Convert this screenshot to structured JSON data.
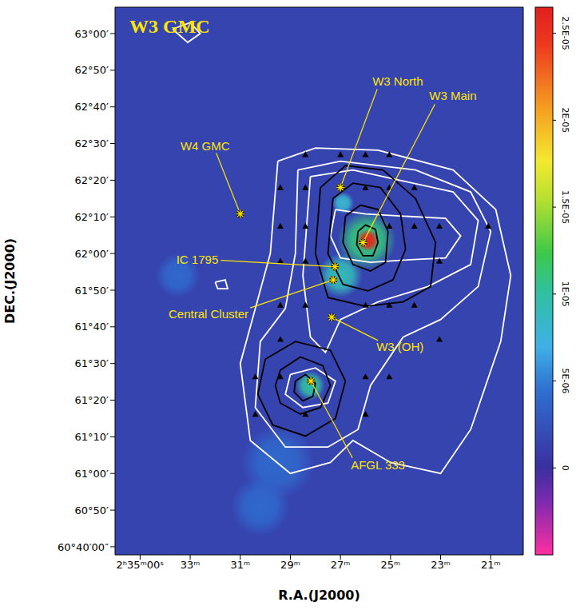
{
  "chart_data": {
    "type": "image",
    "title": "W3 GMC",
    "x_label": "R.A.(J2000)",
    "y_label": "DEC.(J2000)",
    "xlim": [
      36.0,
      19.7
    ],
    "ylim": [
      60.63,
      63.12
    ],
    "xticks": [
      {
        "value": 35,
        "label": "2ʰ35ᵐ00ˢ"
      },
      {
        "value": 33,
        "label": "33ᵐ"
      },
      {
        "value": 31,
        "label": "31ᵐ"
      },
      {
        "value": 29,
        "label": "29ᵐ"
      },
      {
        "value": 27,
        "label": "27ᵐ"
      },
      {
        "value": 25,
        "label": "25ᵐ"
      },
      {
        "value": 23,
        "label": "23ᵐ"
      },
      {
        "value": 21,
        "label": "21ᵐ"
      }
    ],
    "yticks": [
      {
        "value": 60.6667,
        "label": "60°40′00″"
      },
      {
        "value": 60.8333,
        "label": "60°50′"
      },
      {
        "value": 61,
        "label": "61°00′"
      },
      {
        "value": 61.1667,
        "label": "61°10′"
      },
      {
        "value": 61.3333,
        "label": "61°20′"
      },
      {
        "value": 61.5,
        "label": "61°30′"
      },
      {
        "value": 61.6667,
        "label": "61°40′"
      },
      {
        "value": 61.8333,
        "label": "61°50′"
      },
      {
        "value": 62,
        "label": "62°00′"
      },
      {
        "value": 62.1667,
        "label": "62°10′"
      },
      {
        "value": 62.3333,
        "label": "62°20′"
      },
      {
        "value": 62.5,
        "label": "62°30′"
      },
      {
        "value": 62.6667,
        "label": "62°40′"
      },
      {
        "value": 62.8333,
        "label": "62°50′"
      },
      {
        "value": 63,
        "label": "63°00′"
      }
    ],
    "grid": false,
    "background_intensity": 1.5e-06,
    "bright_regions": [
      {
        "x": 25.95,
        "y": 62.06,
        "intensity": 1.1e-05,
        "radius": 8
      },
      {
        "x": 27.0,
        "y": 61.9,
        "intensity": 9e-06,
        "radius": 6
      },
      {
        "x": 28.2,
        "y": 61.4,
        "intensity": 1e-05,
        "radius": 4
      },
      {
        "x": 26.9,
        "y": 62.23,
        "intensity": 8e-06,
        "radius": 3
      },
      {
        "x": 29.5,
        "y": 61.05,
        "intensity": 4e-06,
        "radius": 10
      },
      {
        "x": 30.2,
        "y": 60.85,
        "intensity": 4e-06,
        "radius": 8
      },
      {
        "x": 33.5,
        "y": 61.9,
        "intensity": 4e-06,
        "radius": 6
      },
      {
        "x": 25.9,
        "y": 62.06,
        "intensity": 2.6e-05,
        "radius": 3
      }
    ],
    "colorbar": {
      "range": [
        -5e-06,
        2.65e-05
      ],
      "ticks": [
        0,
        {
          "value": 5e-06,
          "label": "5E-06"
        },
        {
          "value": 1e-05,
          "label": "1E-05"
        },
        {
          "value": 1.5e-05,
          "label": "1.5E-05"
        },
        {
          "value": 2e-05,
          "label": "2E-05"
        },
        {
          "value": 2.5e-05,
          "label": "2.5E-05"
        }
      ]
    },
    "sources": {
      "names": [
        "W4 GMC",
        "W3 North",
        "W3 Main",
        "IC 1795",
        "Central Cluster",
        "W3 (OH)",
        "AFGL 333"
      ],
      "x": [
        31.0,
        27.0,
        26.1,
        27.22,
        27.29,
        27.35,
        28.18
      ],
      "y": [
        62.18,
        62.3,
        62.05,
        61.94,
        61.88,
        61.71,
        61.42
      ],
      "color": "#ffe600",
      "marker": "star"
    },
    "observed_positions": {
      "x": [
        28.4,
        27.0,
        26.0,
        25.05,
        29.4,
        28.4,
        26.0,
        25.05,
        24.05,
        29.4,
        28.4,
        25.05,
        24.05,
        23.05,
        21.1,
        29.4,
        28.4,
        23.05,
        29.4,
        28.4,
        26.0,
        25.05,
        24.05,
        29.4,
        23.05,
        30.4,
        29.4,
        26.0,
        25.05,
        30.4,
        28.4,
        26.0
      ],
      "y": [
        62.45,
        62.45,
        62.45,
        62.45,
        62.3,
        62.3,
        62.3,
        62.3,
        62.3,
        62.125,
        62.125,
        62.125,
        62.125,
        62.125,
        62.125,
        61.966,
        61.966,
        61.966,
        61.766,
        61.766,
        61.766,
        61.766,
        61.766,
        61.61,
        61.61,
        61.44,
        61.44,
        61.44,
        61.44,
        61.27,
        61.27,
        61.27
      ],
      "color": "#000000",
      "marker": "triangle"
    },
    "contours": [
      {
        "color": "#ffffff",
        "points": [
          [
            29.5,
            62.42
          ],
          [
            28.0,
            62.48
          ],
          [
            25.5,
            62.47
          ],
          [
            22.5,
            62.38
          ],
          [
            20.8,
            62.2
          ],
          [
            20.2,
            61.9
          ],
          [
            20.6,
            61.6
          ],
          [
            21.8,
            61.2
          ],
          [
            23.0,
            61.0
          ],
          [
            25.0,
            61.05
          ],
          [
            26.5,
            61.15
          ],
          [
            27.4,
            61.05
          ],
          [
            29.0,
            61.0
          ],
          [
            30.6,
            61.15
          ],
          [
            31.0,
            61.5
          ],
          [
            30.4,
            61.75
          ],
          [
            29.8,
            62.0
          ],
          [
            29.5,
            62.42
          ]
        ]
      },
      {
        "color": "#ffffff",
        "points": [
          [
            28.7,
            62.38
          ],
          [
            27.0,
            62.42
          ],
          [
            24.0,
            62.38
          ],
          [
            21.8,
            62.28
          ],
          [
            21.0,
            62.1
          ],
          [
            21.5,
            61.85
          ],
          [
            23.0,
            61.7
          ],
          [
            24.5,
            61.62
          ],
          [
            25.8,
            61.4
          ],
          [
            26.3,
            61.2
          ],
          [
            27.5,
            61.12
          ],
          [
            29.2,
            61.12
          ],
          [
            30.4,
            61.3
          ],
          [
            30.2,
            61.6
          ],
          [
            29.2,
            61.75
          ],
          [
            28.8,
            62.0
          ],
          [
            28.7,
            62.38
          ]
        ]
      },
      {
        "color": "#ffffff",
        "points": [
          [
            28.2,
            62.35
          ],
          [
            26.5,
            62.38
          ],
          [
            24.5,
            62.33
          ],
          [
            22.5,
            62.28
          ],
          [
            21.5,
            62.15
          ],
          [
            21.8,
            61.95
          ],
          [
            23.5,
            61.85
          ],
          [
            25.5,
            61.78
          ],
          [
            27.0,
            61.7
          ],
          [
            27.6,
            61.55
          ],
          [
            28.2,
            61.62
          ],
          [
            28.5,
            61.9
          ],
          [
            28.2,
            62.35
          ]
        ]
      },
      {
        "color": "#ffffff",
        "points": [
          [
            27.2,
            62.2
          ],
          [
            26.0,
            62.18
          ],
          [
            24.5,
            62.17
          ],
          [
            22.8,
            62.16
          ],
          [
            22.2,
            62.08
          ],
          [
            22.8,
            61.98
          ],
          [
            24.5,
            61.97
          ],
          [
            25.8,
            61.96
          ],
          [
            27.0,
            61.98
          ],
          [
            27.4,
            62.08
          ],
          [
            27.2,
            62.2
          ]
        ]
      },
      {
        "color": "#ffffff",
        "points": [
          [
            29.0,
            61.45
          ],
          [
            28.0,
            61.48
          ],
          [
            27.2,
            61.42
          ],
          [
            27.5,
            61.32
          ],
          [
            28.5,
            61.3
          ],
          [
            29.2,
            61.36
          ],
          [
            29.0,
            61.45
          ]
        ]
      },
      {
        "color": "#ffffff",
        "points": [
          [
            33.7,
            63.02
          ],
          [
            33.0,
            63.05
          ],
          [
            32.6,
            63.0
          ],
          [
            33.1,
            62.96
          ],
          [
            33.7,
            63.02
          ]
        ]
      },
      {
        "color": "#ffffff",
        "points": [
          [
            32.0,
            61.87
          ],
          [
            31.6,
            61.88
          ],
          [
            31.5,
            61.84
          ],
          [
            31.9,
            61.84
          ],
          [
            32.0,
            61.87
          ]
        ]
      },
      {
        "color": "#000000",
        "points": [
          [
            27.8,
            62.3
          ],
          [
            26.8,
            62.4
          ],
          [
            25.3,
            62.38
          ],
          [
            24.0,
            62.25
          ],
          [
            23.2,
            62.05
          ],
          [
            23.4,
            61.85
          ],
          [
            24.5,
            61.78
          ],
          [
            26.0,
            61.76
          ],
          [
            27.5,
            61.8
          ],
          [
            28.0,
            62.0
          ],
          [
            27.8,
            62.3
          ]
        ]
      },
      {
        "color": "#000000",
        "points": [
          [
            27.3,
            62.25
          ],
          [
            26.5,
            62.32
          ],
          [
            25.4,
            62.3
          ],
          [
            24.6,
            62.18
          ],
          [
            24.4,
            62.02
          ],
          [
            24.9,
            61.88
          ],
          [
            25.9,
            61.83
          ],
          [
            26.9,
            61.86
          ],
          [
            27.5,
            62.0
          ],
          [
            27.3,
            62.25
          ]
        ]
      },
      {
        "color": "#000000",
        "points": [
          [
            26.8,
            62.17
          ],
          [
            26.2,
            62.22
          ],
          [
            25.5,
            62.2
          ],
          [
            25.1,
            62.1
          ],
          [
            25.2,
            61.96
          ],
          [
            25.8,
            61.92
          ],
          [
            26.5,
            61.95
          ],
          [
            26.9,
            62.05
          ],
          [
            26.8,
            62.17
          ]
        ]
      },
      {
        "color": "#000000",
        "points": [
          [
            26.3,
            62.1
          ],
          [
            26.0,
            62.13
          ],
          [
            25.6,
            62.11
          ],
          [
            25.5,
            62.05
          ],
          [
            25.7,
            61.99
          ],
          [
            26.1,
            61.99
          ],
          [
            26.35,
            62.04
          ],
          [
            26.3,
            62.1
          ]
        ]
      },
      {
        "color": "#000000",
        "points": [
          [
            30.0,
            61.52
          ],
          [
            28.8,
            61.6
          ],
          [
            27.4,
            61.56
          ],
          [
            26.8,
            61.42
          ],
          [
            27.2,
            61.25
          ],
          [
            28.4,
            61.17
          ],
          [
            29.7,
            61.22
          ],
          [
            30.3,
            61.36
          ],
          [
            30.0,
            61.52
          ]
        ]
      },
      {
        "color": "#000000",
        "points": [
          [
            29.4,
            61.47
          ],
          [
            28.6,
            61.53
          ],
          [
            27.7,
            61.49
          ],
          [
            27.4,
            61.4
          ],
          [
            27.8,
            61.3
          ],
          [
            28.6,
            61.27
          ],
          [
            29.4,
            61.32
          ],
          [
            29.6,
            61.4
          ],
          [
            29.4,
            61.47
          ]
        ]
      },
      {
        "color": "#000000",
        "points": [
          [
            28.8,
            61.42
          ],
          [
            28.4,
            61.45
          ],
          [
            28.0,
            61.41
          ],
          [
            28.1,
            61.35
          ],
          [
            28.5,
            61.33
          ],
          [
            28.85,
            61.37
          ],
          [
            28.8,
            61.42
          ]
        ]
      }
    ]
  }
}
